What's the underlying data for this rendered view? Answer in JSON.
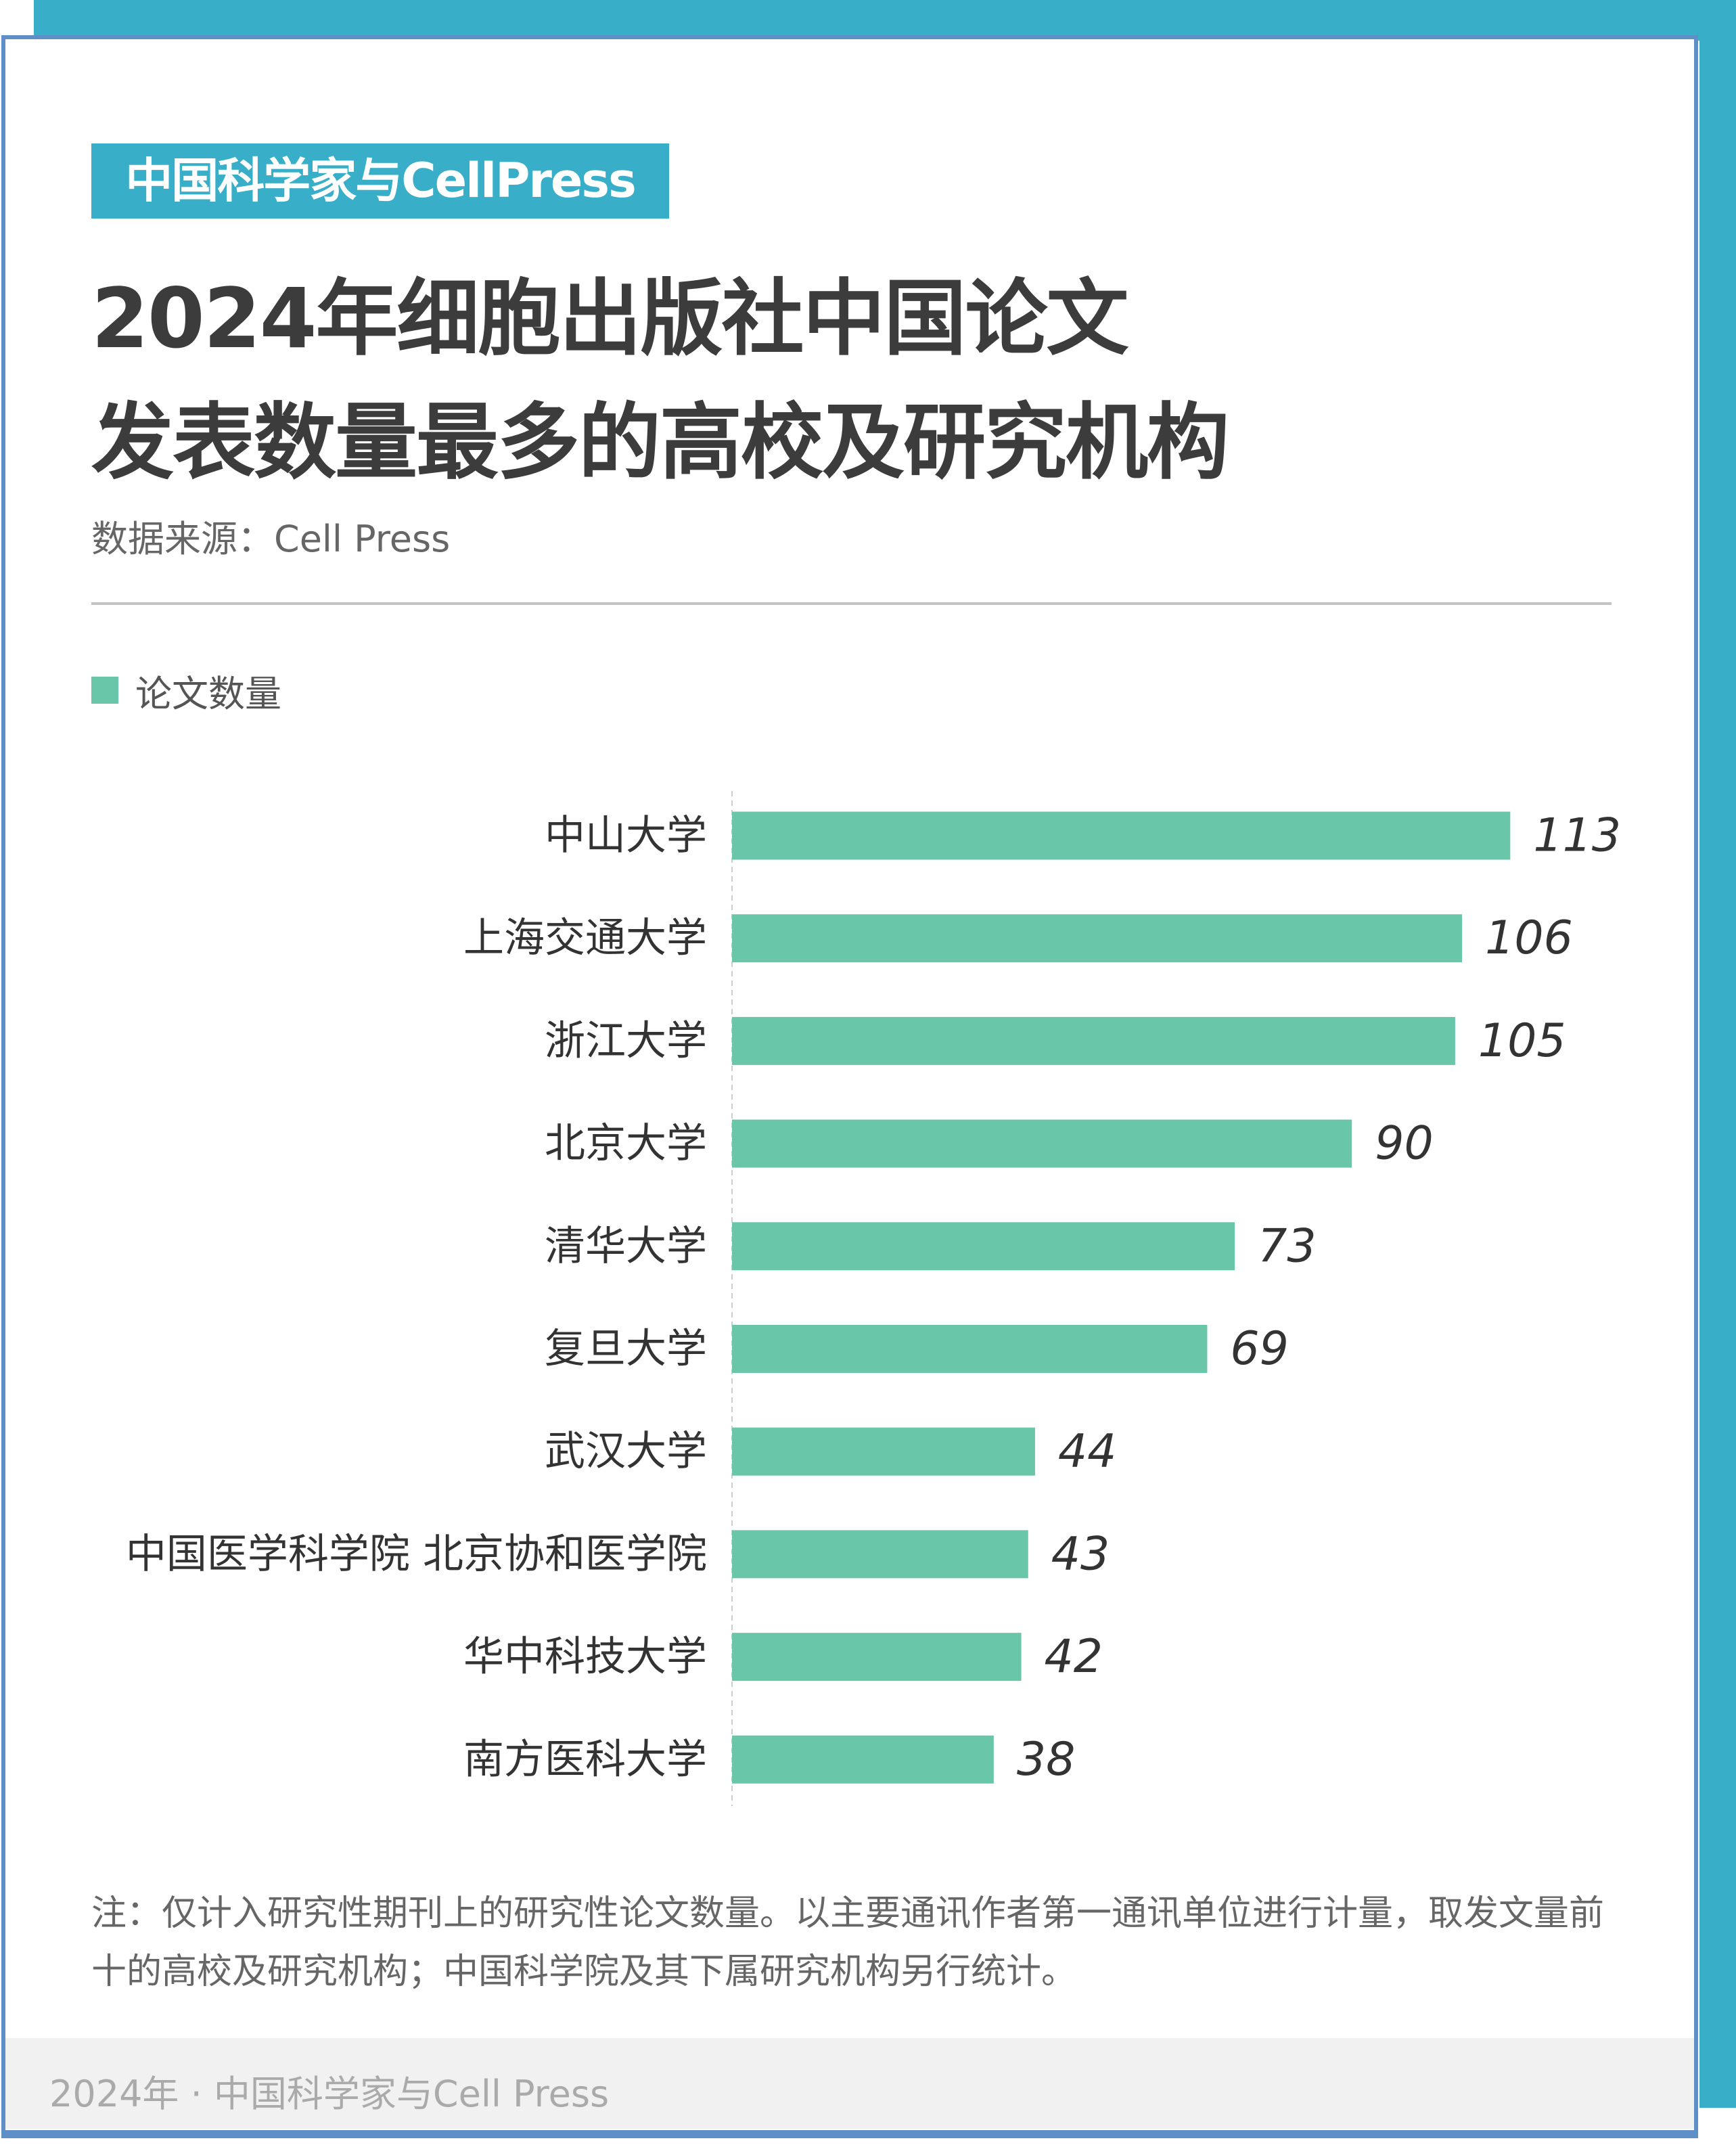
{
  "badge": "中国科学家与CellPress",
  "title": {
    "line1": "2024年细胞出版社中国论文",
    "line2": "发表数量最多的高校及研究机构"
  },
  "source": "数据来源：Cell Press",
  "legend": {
    "label": "论文数量",
    "color": "#6ac6a8"
  },
  "chart_data": {
    "type": "bar",
    "orientation": "horizontal",
    "title": "2024年细胞出版社中国论文发表数量最多的高校及研究机构",
    "categories": [
      "中山大学",
      "上海交通大学",
      "浙江大学",
      "北京大学",
      "清华大学",
      "复旦大学",
      "武汉大学",
      "中国医学科学院 北京协和医学院",
      "华中科技大学",
      "南方医科大学"
    ],
    "series": [
      {
        "name": "论文数量",
        "values": [
          113,
          106,
          105,
          90,
          73,
          69,
          44,
          43,
          42,
          38
        ],
        "color": "#6ac6a8"
      }
    ],
    "xlim": [
      0,
      113
    ],
    "grid": false,
    "legend_position": "top-left"
  },
  "note": "注：仅计入研究性期刊上的研究性论文数量。以主要通讯作者第一通讯单位进行计量，取发文量前十的高校及研究机构；中国科学院及其下属研究机构另行统计。",
  "footer": "2024年 · 中国科学家与Cell Press"
}
